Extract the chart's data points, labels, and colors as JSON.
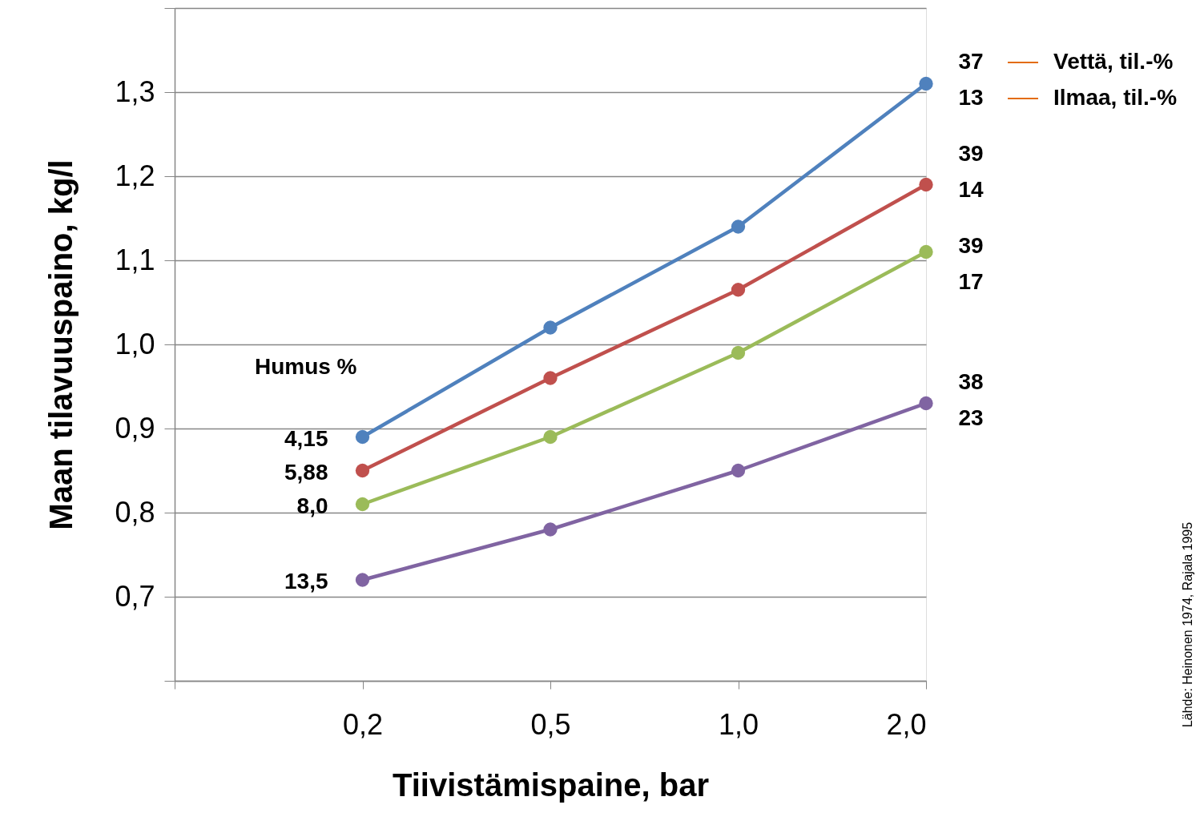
{
  "chart_data": {
    "type": "line",
    "xlabel": "Tiivistämispaine, bar",
    "ylabel": "Maan tilavuuspaino, kg/l",
    "legend_title": "Humus %",
    "categories": [
      null,
      "0,2",
      "0,5",
      "1,0",
      "2,0"
    ],
    "series": [
      {
        "name": "4,15",
        "color": "#4f81bd",
        "values": [
          null,
          0.89,
          1.02,
          1.14,
          1.31
        ]
      },
      {
        "name": "5,88",
        "color": "#c0504d",
        "values": [
          null,
          0.85,
          0.96,
          1.065,
          1.19
        ]
      },
      {
        "name": "8,0",
        "color": "#9bbb59",
        "values": [
          null,
          0.81,
          0.89,
          0.99,
          1.11
        ]
      },
      {
        "name": "13,5",
        "color": "#8064a2",
        "values": [
          null,
          0.72,
          0.78,
          0.85,
          0.93
        ]
      }
    ],
    "ylim": [
      0.6,
      1.4
    ],
    "yticks": [
      {
        "value": 0.6,
        "label": null
      },
      {
        "value": 0.7,
        "label": "0,7"
      },
      {
        "value": 0.8,
        "label": "0,8"
      },
      {
        "value": 0.9,
        "label": "0,9"
      },
      {
        "value": 1.0,
        "label": "1,0"
      },
      {
        "value": 1.1,
        "label": "1,1"
      },
      {
        "value": 1.2,
        "label": "1,2"
      },
      {
        "value": 1.3,
        "label": "1,3"
      },
      {
        "value": 1.4,
        "label": null
      }
    ],
    "grid": "y",
    "marker": "circle",
    "line_style": "solid",
    "legend": "left",
    "annotations": [
      "37",
      "13",
      "39",
      "14",
      "39",
      "17",
      "38",
      "23",
      "Vettä, til.-%",
      "Ilmaa, til.-%",
      "Lähde: Heinonen 1974, Rajala 1995"
    ]
  }
}
